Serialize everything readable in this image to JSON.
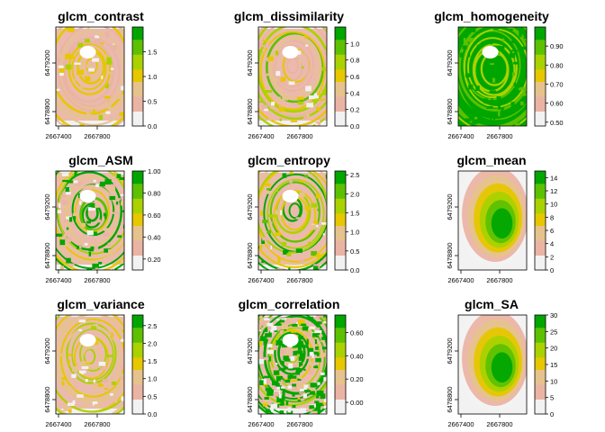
{
  "figure": {
    "x_axis_ticks": [
      "2667400",
      "2667800"
    ],
    "y_axis_ticks": [
      "6479200",
      "6478800"
    ]
  },
  "colors": {
    "ramp": [
      "#F2F2F2",
      "#EAB4A4",
      "#E6C38C",
      "#E6C700",
      "#AAD200",
      "#5CC100",
      "#00A600"
    ],
    "frame": "#000000"
  },
  "chart_data": [
    {
      "type": "heatmap",
      "title": "glcm_contrast",
      "legend_range": [
        0,
        2.0
      ],
      "legend_ticks": [
        "0.0",
        "0.5",
        "1.0",
        "1.5"
      ],
      "legend_tick_values": [
        0,
        0.5,
        1.0,
        1.5
      ],
      "pattern": "rings",
      "level": 0.25
    },
    {
      "type": "heatmap",
      "title": "glcm_dissimilarity",
      "legend_range": [
        0,
        1.2
      ],
      "legend_ticks": [
        "0.0",
        "0.2",
        "0.4",
        "0.6",
        "0.8",
        "1.0"
      ],
      "legend_tick_values": [
        0,
        0.2,
        0.4,
        0.6,
        0.8,
        1.0
      ],
      "pattern": "rings",
      "level": 0.3
    },
    {
      "type": "heatmap",
      "title": "glcm_homogeneity",
      "legend_range": [
        0.48,
        1.0
      ],
      "legend_ticks": [
        "0.50",
        "0.60",
        "0.70",
        "0.80",
        "0.90"
      ],
      "legend_tick_values": [
        0.5,
        0.6,
        0.7,
        0.8,
        0.9
      ],
      "pattern": "rings-inverse",
      "level": 0.8
    },
    {
      "type": "heatmap",
      "title": "glcm_ASM",
      "legend_range": [
        0.1,
        1.0
      ],
      "legend_ticks": [
        "0.20",
        "0.40",
        "0.60",
        "0.80",
        "1.00"
      ],
      "legend_tick_values": [
        0.2,
        0.4,
        0.6,
        0.8,
        1.0
      ],
      "pattern": "patchy",
      "level": 0.55
    },
    {
      "type": "heatmap",
      "title": "glcm_entropy",
      "legend_range": [
        0,
        2.6
      ],
      "legend_ticks": [
        "0.0",
        "0.5",
        "1.0",
        "1.5",
        "2.0",
        "2.5"
      ],
      "legend_tick_values": [
        0,
        0.5,
        1.0,
        1.5,
        2.0,
        2.5
      ],
      "pattern": "rings-mid",
      "level": 0.6
    },
    {
      "type": "heatmap",
      "title": "glcm_mean",
      "legend_range": [
        0,
        15
      ],
      "legend_ticks": [
        "0",
        "2",
        "4",
        "6",
        "8",
        "10",
        "12",
        "14"
      ],
      "legend_tick_values": [
        0,
        2,
        4,
        6,
        8,
        10,
        12,
        14
      ],
      "pattern": "blob",
      "level": 0.75
    },
    {
      "type": "heatmap",
      "title": "glcm_variance",
      "legend_range": [
        0,
        2.8
      ],
      "legend_ticks": [
        "0.0",
        "0.5",
        "1.0",
        "1.5",
        "2.0",
        "2.5"
      ],
      "legend_tick_values": [
        0,
        0.5,
        1.0,
        1.5,
        2.0,
        2.5
      ],
      "pattern": "rings",
      "level": 0.2
    },
    {
      "type": "heatmap",
      "title": "glcm_correlation",
      "legend_range": [
        -0.1,
        0.75
      ],
      "legend_ticks": [
        "0.00",
        "0.20",
        "0.40",
        "0.60"
      ],
      "legend_tick_values": [
        0,
        0.2,
        0.4,
        0.6
      ],
      "pattern": "noisy",
      "level": 0.65
    },
    {
      "type": "heatmap",
      "title": "glcm_SA",
      "legend_range": [
        0,
        30
      ],
      "legend_ticks": [
        "0",
        "5",
        "10",
        "15",
        "20",
        "25",
        "30"
      ],
      "legend_tick_values": [
        0,
        5,
        10,
        15,
        20,
        25,
        30
      ],
      "pattern": "blob",
      "level": 0.75
    }
  ]
}
